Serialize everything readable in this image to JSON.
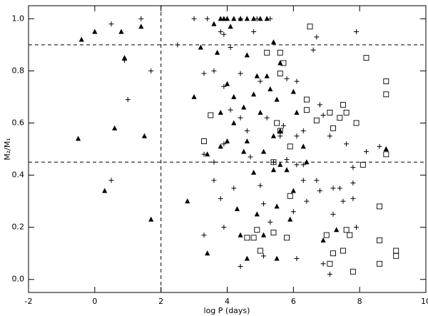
{
  "chart_data": {
    "type": "scatter",
    "xlabel": "log P (days)",
    "ylabel": "M₂/M₁",
    "xlim": [
      -2,
      10
    ],
    "ylim": [
      -0.05,
      1.05
    ],
    "xticks": [
      -2,
      0,
      2,
      4,
      6,
      8,
      10
    ],
    "yticks": [
      {
        "value": 0,
        "label": "0.0"
      },
      {
        "value": 0.2,
        "label": "0.2"
      },
      {
        "value": 0.4,
        "label": "0.4"
      },
      {
        "value": 0.6,
        "label": "0.6"
      },
      {
        "value": 0.8,
        "label": "0.8"
      },
      {
        "value": 1,
        "label": "1.0"
      }
    ],
    "hlines": [
      0.9,
      0.45
    ],
    "vlines": [
      2
    ],
    "series": [
      {
        "marker": "triangle",
        "color": "#000000",
        "x": [
          -0.4,
          0.0,
          0.8,
          0.9,
          1.4,
          -0.5,
          0.6,
          1.5,
          0.3,
          1.7,
          2.8,
          3.0,
          3.4,
          3.8,
          3.9,
          4.0,
          4.2,
          4.4,
          4.6,
          4.8,
          5.0,
          5.2,
          3.6,
          4.1,
          5.4,
          3.2,
          3.7,
          4.6,
          5.6,
          4.9,
          5.2,
          4.0,
          5.3,
          4.2,
          4.8,
          6.0,
          5.5,
          4.5,
          3.8,
          5.0,
          6.1,
          4.2,
          5.6,
          4.0,
          4.6,
          5.4,
          6.3,
          3.4,
          3.8,
          4.5,
          5.1,
          5.6,
          4.8,
          5.4,
          5.8,
          6.4,
          4.3,
          4.9,
          5.5,
          5.9,
          6.0,
          4.4,
          5.1,
          4.6,
          5.5,
          6.9,
          7.3,
          8.8
        ],
        "values": [
          0.92,
          0.95,
          0.95,
          0.85,
          0.97,
          0.54,
          0.58,
          0.55,
          0.34,
          0.23,
          0.3,
          0.7,
          0.1,
          1.0,
          1.0,
          1.0,
          1.0,
          1.0,
          1.0,
          1.0,
          1.0,
          1.0,
          0.98,
          0.97,
          0.91,
          0.89,
          0.87,
          0.86,
          0.83,
          0.78,
          0.78,
          0.75,
          0.73,
          0.7,
          0.71,
          0.72,
          0.69,
          0.66,
          0.64,
          0.64,
          0.64,
          0.6,
          0.57,
          0.53,
          0.53,
          0.55,
          0.51,
          0.48,
          0.51,
          0.49,
          0.49,
          0.44,
          0.41,
          0.42,
          0.42,
          0.45,
          0.27,
          0.25,
          0.28,
          0.23,
          0.34,
          0.17,
          0.17,
          0.08,
          0.08,
          0.15,
          0.19,
          0.5
        ]
      },
      {
        "marker": "square",
        "color": "#000000",
        "x": [
          3.3,
          3.5,
          4.6,
          4.8,
          4.9,
          5.0,
          5.4,
          5.6,
          5.2,
          5.6,
          5.7,
          5.5,
          5.6,
          5.4,
          5.8,
          5.9,
          5.9,
          6.4,
          6.5,
          6.4,
          6.7,
          7.1,
          7.5,
          7.6,
          7.4,
          7.2,
          7.9,
          7.0,
          7.1,
          7.2,
          7.5,
          7.6,
          7.7,
          7.8,
          8.1,
          8.2,
          8.8,
          8.8,
          8.8,
          8.6,
          8.6,
          8.6,
          9.1,
          9.1
        ],
        "values": [
          0.53,
          0.63,
          0.16,
          0.16,
          0.19,
          0.11,
          0.18,
          0.87,
          0.87,
          0.79,
          0.83,
          0.6,
          0.57,
          0.45,
          0.16,
          0.32,
          0.51,
          0.69,
          0.97,
          0.65,
          0.61,
          0.64,
          0.67,
          0.64,
          0.62,
          0.58,
          0.6,
          0.17,
          0.06,
          0.1,
          0.11,
          0.19,
          0.17,
          0.03,
          0.44,
          0.85,
          0.76,
          0.71,
          0.48,
          0.28,
          0.15,
          0.06,
          0.09,
          0.11
        ]
      },
      {
        "marker": "plus",
        "color": "#000000",
        "x": [
          0.5,
          1.4,
          0.9,
          1.0,
          1.7,
          0.5,
          3.0,
          3.4,
          4.4,
          4.9,
          5.3,
          2.5,
          3.8,
          3.9,
          4.1,
          4.8,
          3.3,
          3.6,
          3.9,
          4.4,
          5.0,
          5.8,
          6.1,
          4.1,
          4.4,
          5.2,
          5.7,
          6.1,
          3.9,
          4.6,
          5.6,
          6.3,
          3.3,
          3.6,
          3.6,
          4.7,
          5.4,
          5.8,
          6.1,
          6.3,
          3.8,
          3.9,
          4.2,
          5.0,
          5.1,
          5.3,
          6.3,
          6.4,
          6.7,
          6.0,
          3.3,
          4.4,
          5.1,
          6.1,
          6.8,
          6.9,
          7.1,
          7.2,
          7.2,
          7.4,
          7.5,
          7.8,
          7.8,
          7.9,
          7.9,
          6.7,
          6.6,
          6.9,
          6.8,
          7.1,
          7.6,
          8.2,
          8.6,
          7.8
        ],
        "values": [
          0.98,
          1.0,
          0.84,
          0.69,
          0.8,
          0.38,
          1.0,
          1.0,
          1.0,
          1.0,
          1.0,
          0.9,
          0.95,
          0.94,
          0.89,
          0.95,
          0.79,
          0.8,
          0.74,
          0.79,
          0.76,
          0.77,
          0.76,
          0.65,
          0.62,
          0.62,
          0.59,
          0.55,
          0.52,
          0.57,
          0.55,
          0.57,
          0.48,
          0.45,
          0.38,
          0.47,
          0.45,
          0.46,
          0.44,
          0.44,
          0.31,
          0.2,
          0.35,
          0.36,
          0.29,
          0.22,
          0.38,
          0.3,
          0.38,
          0.26,
          0.17,
          0.05,
          0.09,
          0.08,
          0.34,
          0.06,
          0.02,
          0.35,
          0.25,
          0.35,
          0.3,
          0.37,
          0.31,
          0.2,
          0.95,
          0.93,
          0.88,
          0.63,
          0.67,
          0.55,
          0.52,
          0.49,
          0.51,
          0.43
        ]
      }
    ]
  }
}
